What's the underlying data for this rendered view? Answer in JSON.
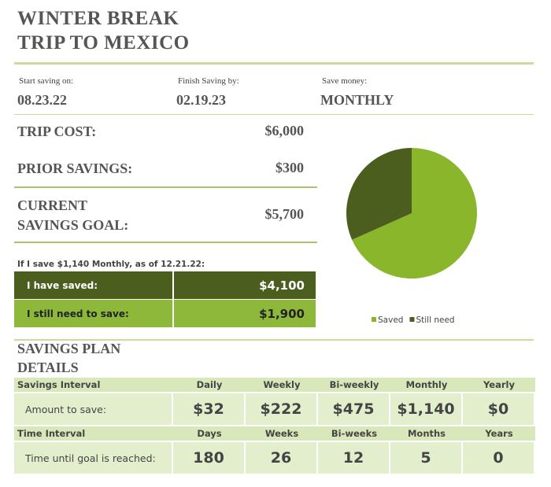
{
  "header": {
    "title_lines": [
      "WINTER BREAK",
      "TRIP TO MEXICO"
    ]
  },
  "dates": [
    {
      "label": "Start saving on:",
      "value": "08.23.22"
    },
    {
      "label": "Finish Saving by:",
      "value": "02.19.23"
    },
    {
      "label": "Save money:",
      "value": "MONTHLY"
    }
  ],
  "costs": [
    {
      "label_lines": [
        "TRIP COST:"
      ],
      "value": "$6,000"
    },
    {
      "label_lines": [
        "PRIOR SAVINGS:"
      ],
      "value": "$300"
    },
    {
      "label_lines": [
        "CURRENT",
        "SAVINGS GOAL:"
      ],
      "value": "$5,700"
    }
  ],
  "status": {
    "caption": "If I save $1,140 Monthly, as of 12.21.22:",
    "rows": [
      [
        "I have saved:",
        "$4,100"
      ],
      [
        "I still need to save:",
        "$1,900"
      ]
    ]
  },
  "chart_data": {
    "type": "pie",
    "categories": [
      "Saved",
      "Still need"
    ],
    "values": [
      4100,
      1900
    ],
    "colors": [
      "#8ab62c",
      "#4b5e1e"
    ],
    "legend": "bottom"
  },
  "plan": {
    "title_lines": [
      "SAVINGS PLAN",
      "DETAILS"
    ],
    "tables": [
      {
        "header": [
          "Savings Interval",
          "Daily",
          "Weekly",
          "Bi-weekly",
          "Monthly",
          "Yearly"
        ],
        "row": [
          "Amount to save:",
          "$32",
          "$222",
          "$475",
          "$1,140",
          "$0"
        ]
      },
      {
        "header": [
          "Time Interval",
          "Days",
          "Weeks",
          "Bi-weeks",
          "Months",
          "Years"
        ],
        "row": [
          "Time until goal is reached:",
          "180",
          "26",
          "12",
          "5",
          "0"
        ]
      }
    ]
  }
}
